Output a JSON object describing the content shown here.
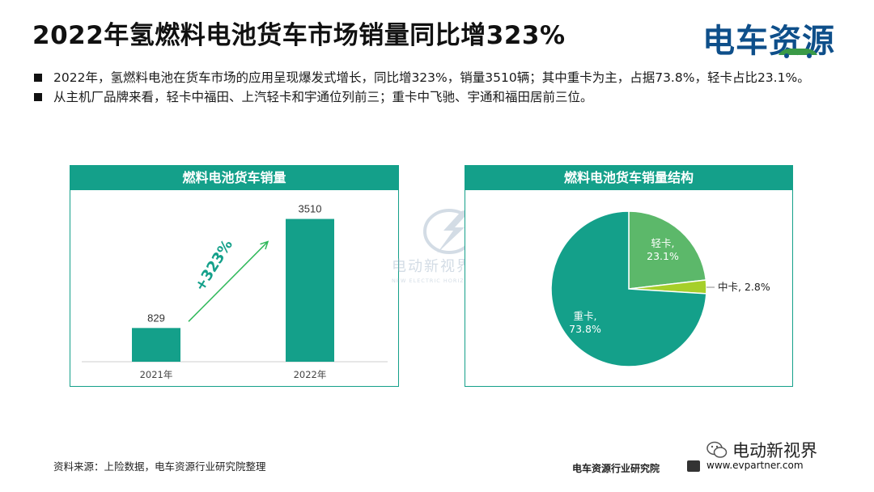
{
  "title": "2022年氢燃料电池货车市场销量同比增323%",
  "logo": {
    "text": "电车资源"
  },
  "bullets": [
    "2022年，氢燃料电池在货车市场的应用呈现爆发式增长，同比增323%，销量3510辆；其中重卡为主，占据73.8%，轻卡占比23.1%。",
    "从主机厂品牌来看，轻卡中福田、上汽轻卡和宇通位列前三；重卡中飞驰、宇通和福田居前三位。"
  ],
  "watermark": {
    "name": "电动新视界",
    "sub": "NEW ELECTRIC HORIZON"
  },
  "colors": {
    "teal": "#14a08a",
    "light_green": "#5cb86a",
    "lime": "#a6cf2a",
    "accent_text": "#14a08a"
  },
  "chart_data": [
    {
      "type": "bar",
      "title": "燃料电池货车销量",
      "categories": [
        "2021年",
        "2022年"
      ],
      "values": [
        829,
        3510
      ],
      "ylim": [
        0,
        3700
      ],
      "annotation": "+323%",
      "grid": false
    },
    {
      "type": "pie",
      "title": "燃料电池货车销量结构",
      "slices": [
        {
          "name": "轻卡",
          "value": 23.1,
          "label": "轻卡,\n23.1%",
          "color": "#5cb86a"
        },
        {
          "name": "中卡",
          "value": 2.8,
          "label": "中卡, 2.8%",
          "color": "#a6cf2a"
        },
        {
          "name": "重卡",
          "value": 73.8,
          "label": "重卡,\n73.8%",
          "color": "#14a08a"
        }
      ]
    }
  ],
  "footer": {
    "source": "资料来源：上险数据，电车资源行业研究院整理",
    "org": "电车资源行业研究院",
    "url": "www.evpartner.com",
    "wechat": "电动新视界"
  }
}
